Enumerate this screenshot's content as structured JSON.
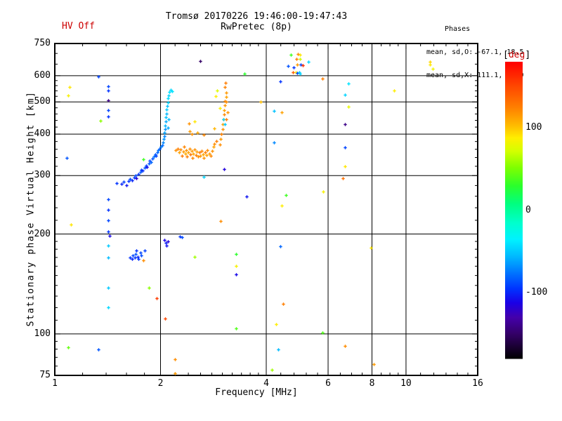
{
  "header": {
    "hv_status": "HV Off",
    "title": "Tromsø 20170226 19:46:00-19:47:43",
    "subtitle": "RwPretec (8p)",
    "stats": {
      "title": "Phases",
      "line_o": "mean, sd,O: -67.1, 18.5",
      "line_x": "mean, sd,X: 111.1, 22.9"
    }
  },
  "colors": {
    "accent_red": "#cc0000",
    "axis_black": "#000000",
    "background": "#ffffff"
  },
  "chart_data": {
    "type": "scatter",
    "title": "Tromsø 20170226 19:46:00-19:47:43",
    "subtitle": "RwPretec (8p)",
    "xlabel": "Frequency [MHz]",
    "ylabel": "Stationary phase Virtual Height [km]",
    "xscale": "log",
    "yscale": "log",
    "xlim": [
      1,
      16
    ],
    "ylim": [
      75,
      750
    ],
    "xticks": [
      1,
      2,
      4,
      6,
      8,
      10,
      16
    ],
    "xticks_minor": [
      1.2,
      1.4,
      1.6,
      1.8,
      2.2,
      2.4,
      2.6,
      2.8,
      3.0,
      3.2,
      3.4,
      3.6,
      3.8,
      4.4,
      4.8,
      5.2,
      5.6,
      6.5,
      7.0,
      7.5,
      8.5,
      9.0,
      9.5,
      11,
      12,
      13,
      14,
      15
    ],
    "yticks": [
      75,
      100,
      200,
      300,
      400,
      500,
      600,
      750
    ],
    "yticks_minor": [
      80,
      85,
      90,
      95,
      110,
      120,
      130,
      140,
      150,
      160,
      170,
      180,
      190,
      220,
      240,
      260,
      280,
      320,
      340,
      360,
      380,
      420,
      440,
      460,
      480,
      520,
      540,
      560,
      580,
      650,
      700
    ],
    "grid_x": [
      2,
      4,
      6,
      8,
      10
    ],
    "grid_y": [
      100,
      200,
      300,
      400,
      500,
      600
    ],
    "grid": true,
    "legend_position": "right-colorbar",
    "colorbar": {
      "bracket_open": "[",
      "label": "deg",
      "bracket_close": "]",
      "ticks": [
        100,
        0,
        -100
      ],
      "range": [
        180,
        -180
      ],
      "stops": [
        [
          180,
          "#ff0000"
        ],
        [
          152,
          "#ff4400"
        ],
        [
          125,
          "#ff7f00"
        ],
        [
          103,
          "#ffbb00"
        ],
        [
          88,
          "#ffee00"
        ],
        [
          72,
          "#d4ff00"
        ],
        [
          52,
          "#7fff00"
        ],
        [
          30,
          "#2bff2b"
        ],
        [
          8,
          "#00ff80"
        ],
        [
          -15,
          "#00ffcc"
        ],
        [
          -35,
          "#00f2ff"
        ],
        [
          -55,
          "#00bbff"
        ],
        [
          -75,
          "#0077ff"
        ],
        [
          -95,
          "#0033ff"
        ],
        [
          -112,
          "#1a00e6"
        ],
        [
          -130,
          "#4400aa"
        ],
        [
          -150,
          "#330066"
        ],
        [
          -165,
          "#1a0033"
        ],
        [
          -180,
          "#000000"
        ]
      ]
    },
    "point_format": [
      "frequency_MHz",
      "virtual_height_km",
      "phase_deg"
    ],
    "points": [
      [
        1.5,
        285,
        -95
      ],
      [
        1.55,
        283,
        -100
      ],
      [
        1.57,
        288,
        -92
      ],
      [
        1.6,
        281,
        -105
      ],
      [
        1.62,
        289,
        -95
      ],
      [
        1.64,
        293,
        -88
      ],
      [
        1.66,
        290,
        -100
      ],
      [
        1.68,
        296,
        -92
      ],
      [
        1.7,
        300,
        -88
      ],
      [
        1.71,
        295,
        -118
      ],
      [
        1.73,
        304,
        -95
      ],
      [
        1.75,
        308,
        -85
      ],
      [
        1.76,
        313,
        -92
      ],
      [
        1.78,
        310,
        -96
      ],
      [
        1.8,
        317,
        -85
      ],
      [
        1.82,
        322,
        -90
      ],
      [
        1.83,
        318,
        -108
      ],
      [
        1.85,
        327,
        -84
      ],
      [
        1.86,
        332,
        -90
      ],
      [
        1.88,
        329,
        -80
      ],
      [
        1.9,
        337,
        -86
      ],
      [
        1.91,
        342,
        -76
      ],
      [
        1.93,
        347,
        -84
      ],
      [
        1.94,
        344,
        -90
      ],
      [
        1.96,
        352,
        -80
      ],
      [
        1.97,
        357,
        -76
      ],
      [
        1.99,
        362,
        -82
      ],
      [
        2.0,
        366,
        -72
      ],
      [
        2.02,
        371,
        -78
      ],
      [
        2.03,
        378,
        -70
      ],
      [
        2.04,
        386,
        -66
      ],
      [
        2.05,
        395,
        -70
      ],
      [
        2.05,
        405,
        -62
      ],
      [
        2.06,
        414,
        -66
      ],
      [
        2.06,
        424,
        -56
      ],
      [
        2.07,
        436,
        -60
      ],
      [
        2.07,
        449,
        -52
      ],
      [
        2.08,
        462,
        -56
      ],
      [
        2.08,
        474,
        -48
      ],
      [
        2.09,
        487,
        -52
      ],
      [
        2.1,
        499,
        -46
      ],
      [
        2.1,
        512,
        -42
      ],
      [
        2.11,
        524,
        -46
      ],
      [
        2.12,
        536,
        -42
      ],
      [
        2.14,
        543,
        -44
      ],
      [
        2.16,
        539,
        -40
      ],
      [
        2.1,
        418,
        -60
      ],
      [
        2.11,
        443,
        -55
      ],
      [
        1.79,
        336,
        35
      ],
      [
        2.21,
        357,
        118
      ],
      [
        2.24,
        362,
        125
      ],
      [
        2.26,
        352,
        112
      ],
      [
        2.28,
        360,
        120
      ],
      [
        2.3,
        345,
        128
      ],
      [
        2.32,
        355,
        115
      ],
      [
        2.33,
        366,
        122
      ],
      [
        2.35,
        350,
        108
      ],
      [
        2.37,
        358,
        118
      ],
      [
        2.38,
        342,
        125
      ],
      [
        2.4,
        352,
        112
      ],
      [
        2.42,
        362,
        120
      ],
      [
        2.43,
        348,
        130
      ],
      [
        2.45,
        356,
        115
      ],
      [
        2.47,
        340,
        122
      ],
      [
        2.48,
        350,
        110
      ],
      [
        2.5,
        360,
        118
      ],
      [
        2.52,
        346,
        125
      ],
      [
        2.54,
        354,
        112
      ],
      [
        2.56,
        342,
        120
      ],
      [
        2.58,
        352,
        128
      ],
      [
        2.6,
        344,
        115
      ],
      [
        2.62,
        356,
        122
      ],
      [
        2.64,
        348,
        110
      ],
      [
        2.66,
        340,
        118
      ],
      [
        2.68,
        352,
        125
      ],
      [
        2.7,
        346,
        112
      ],
      [
        2.72,
        358,
        120
      ],
      [
        2.75,
        350,
        115
      ],
      [
        2.78,
        344,
        122
      ],
      [
        2.8,
        356,
        118
      ],
      [
        2.83,
        366,
        112
      ],
      [
        2.85,
        374,
        120
      ],
      [
        2.88,
        382,
        125
      ],
      [
        2.45,
        400,
        118
      ],
      [
        2.55,
        405,
        110
      ],
      [
        2.65,
        398,
        122
      ],
      [
        2.42,
        408,
        115
      ],
      [
        2.85,
        417,
        105
      ],
      [
        2.95,
        372,
        120
      ],
      [
        2.97,
        386,
        116
      ],
      [
        2.98,
        400,
        124
      ],
      [
        3.0,
        414,
        118
      ],
      [
        3.0,
        429,
        112
      ],
      [
        3.02,
        444,
        118
      ],
      [
        3.03,
        459,
        122
      ],
      [
        3.03,
        473,
        112
      ],
      [
        3.05,
        488,
        116
      ],
      [
        3.05,
        503,
        122
      ],
      [
        3.07,
        518,
        112
      ],
      [
        3.08,
        533,
        116
      ],
      [
        3.05,
        555,
        124
      ],
      [
        3.06,
        570,
        126
      ],
      [
        3.02,
        443,
        -46
      ],
      [
        3.05,
        428,
        -50
      ],
      [
        2.87,
        520,
        88
      ],
      [
        2.9,
        540,
        76
      ],
      [
        2.95,
        480,
        86
      ],
      [
        2.5,
        437,
        90
      ],
      [
        2.41,
        430,
        118
      ],
      [
        3.08,
        500,
        120
      ],
      [
        3.08,
        443,
        126
      ],
      [
        3.1,
        465,
        118
      ],
      [
        1.64,
        170,
        -95
      ],
      [
        1.66,
        168,
        -100
      ],
      [
        1.67,
        172,
        -90
      ],
      [
        1.69,
        170,
        -95
      ],
      [
        1.7,
        174,
        -86
      ],
      [
        1.72,
        171,
        -100
      ],
      [
        1.73,
        168,
        -95
      ],
      [
        1.75,
        176,
        -90
      ],
      [
        1.71,
        178,
        -96
      ],
      [
        1.76,
        172,
        -88
      ],
      [
        1.79,
        167,
        120
      ],
      [
        1.8,
        178,
        -92
      ],
      [
        2.05,
        192,
        -112
      ],
      [
        2.07,
        188,
        -102
      ],
      [
        2.08,
        185,
        -106
      ],
      [
        2.1,
        190,
        -116
      ],
      [
        2.27,
        197,
        -95
      ],
      [
        2.3,
        196,
        -88
      ],
      [
        1.33,
        597,
        -90
      ],
      [
        1.42,
        558,
        -90
      ],
      [
        1.42,
        540,
        -95
      ],
      [
        1.42,
        505,
        -140
      ],
      [
        1.42,
        472,
        -90
      ],
      [
        1.42,
        453,
        -95
      ],
      [
        1.35,
        438,
        55
      ],
      [
        1.42,
        255,
        -90
      ],
      [
        1.42,
        237,
        -95
      ],
      [
        1.42,
        220,
        -90
      ],
      [
        1.42,
        203,
        -95
      ],
      [
        1.43,
        198,
        -110
      ],
      [
        1.42,
        185,
        -50
      ],
      [
        1.42,
        170,
        -55
      ],
      [
        1.42,
        138,
        -50
      ],
      [
        1.42,
        120,
        -45
      ],
      [
        1.1,
        555,
        90
      ],
      [
        1.09,
        523,
        85
      ],
      [
        1.11,
        214,
        90
      ],
      [
        1.08,
        340,
        -85
      ],
      [
        1.09,
        91,
        45
      ],
      [
        1.33,
        90,
        -85
      ],
      [
        4.7,
        694,
        35
      ],
      [
        4.91,
        697,
        120
      ],
      [
        5.0,
        695,
        90
      ],
      [
        4.87,
        674,
        125
      ],
      [
        5.0,
        674,
        70
      ],
      [
        4.89,
        648,
        115
      ],
      [
        5.02,
        648,
        -90
      ],
      [
        5.09,
        645,
        160
      ],
      [
        5.28,
        661,
        -45
      ],
      [
        4.61,
        642,
        -86
      ],
      [
        4.78,
        636,
        -95
      ],
      [
        4.76,
        615,
        140
      ],
      [
        4.85,
        615,
        90
      ],
      [
        4.89,
        612,
        -90
      ],
      [
        4.96,
        615,
        -50
      ],
      [
        4.98,
        609,
        -46
      ],
      [
        4.38,
        578,
        -95
      ],
      [
        5.78,
        587,
        125
      ],
      [
        2.6,
        664,
        -150
      ],
      [
        3.47,
        609,
        30
      ],
      [
        11.7,
        661,
        95
      ],
      [
        11.7,
        648,
        90
      ],
      [
        11.9,
        630,
        82
      ],
      [
        6.85,
        567,
        -40
      ],
      [
        6.7,
        525,
        -46
      ],
      [
        6.85,
        485,
        80
      ],
      [
        6.7,
        428,
        -140
      ],
      [
        6.7,
        365,
        -90
      ],
      [
        6.7,
        320,
        90
      ],
      [
        6.6,
        294,
        132
      ],
      [
        6.7,
        92,
        120
      ],
      [
        9.25,
        540,
        88
      ],
      [
        7.95,
        182,
        90
      ],
      [
        8.1,
        81,
        115
      ],
      [
        3.28,
        174,
        30
      ],
      [
        3.28,
        160,
        85
      ],
      [
        3.28,
        151,
        -110
      ],
      [
        3.28,
        104,
        40
      ],
      [
        3.52,
        260,
        -105
      ],
      [
        2.65,
        297,
        -46
      ],
      [
        4.55,
        262,
        35
      ],
      [
        5.8,
        268,
        85
      ],
      [
        4.43,
        244,
        88
      ],
      [
        2.97,
        219,
        120
      ],
      [
        4.38,
        184,
        -80
      ],
      [
        4.47,
        123,
        125
      ],
      [
        4.26,
        107,
        88
      ],
      [
        5.77,
        101,
        40
      ],
      [
        4.33,
        90,
        -55
      ],
      [
        4.15,
        78,
        60
      ],
      [
        1.95,
        128,
        155
      ],
      [
        2.06,
        111,
        150
      ],
      [
        1.85,
        138,
        55
      ],
      [
        2.5,
        171,
        60
      ],
      [
        2.2,
        84,
        120
      ],
      [
        2.2,
        76,
        115
      ],
      [
        3.03,
        314,
        -115
      ],
      [
        4.2,
        470,
        -52
      ],
      [
        4.43,
        465,
        112
      ],
      [
        3.85,
        500,
        102
      ],
      [
        4.2,
        378,
        -70
      ]
    ]
  }
}
